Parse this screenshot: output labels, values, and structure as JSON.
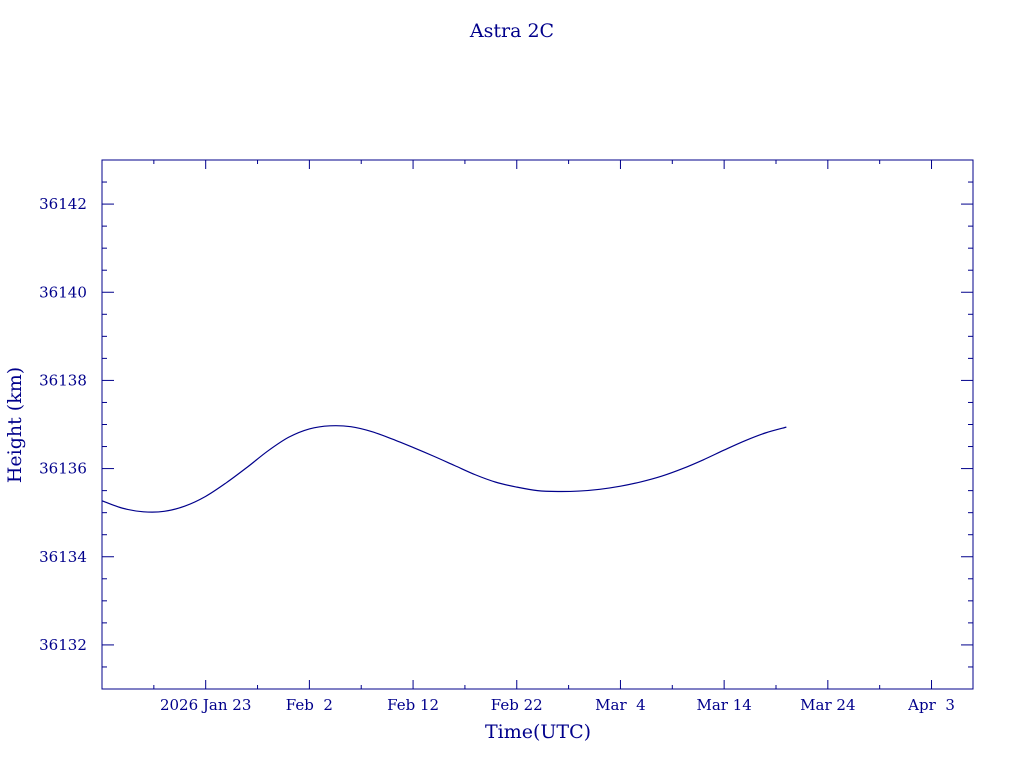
{
  "chart_data": {
    "type": "line",
    "title": "Astra 2C",
    "xlabel": "Time(UTC)",
    "ylabel": "Height (km)",
    "ylim": [
      36131,
      36143
    ],
    "xlim": [
      "2026-01-13",
      "2026-04-07"
    ],
    "grid": false,
    "color": "#00008b",
    "x_tick_labels": [
      "2026 Jan 23",
      "Feb  2",
      "Feb 12",
      "Feb 22",
      "Mar  4",
      "Mar 14",
      "Mar 24",
      "Apr  3"
    ],
    "x_ticks": [
      "2026-01-23",
      "2026-02-02",
      "2026-02-12",
      "2026-02-22",
      "2026-03-04",
      "2026-03-14",
      "2026-03-24",
      "2026-04-03"
    ],
    "y_tick_labels": [
      "36132",
      "36134",
      "36136",
      "36138",
      "36140",
      "36142"
    ],
    "y_ticks": [
      36132,
      36134,
      36136,
      36138,
      36140,
      36142
    ],
    "series": [
      {
        "x": [
          "2026-01-13",
          "2026-01-15",
          "2026-01-17",
          "2026-01-19",
          "2026-01-21",
          "2026-01-23",
          "2026-01-25",
          "2026-01-27",
          "2026-01-29",
          "2026-01-31",
          "2026-02-02",
          "2026-02-04",
          "2026-02-06",
          "2026-02-08",
          "2026-02-10",
          "2026-02-12",
          "2026-02-14",
          "2026-02-16",
          "2026-02-18",
          "2026-02-20",
          "2026-02-22",
          "2026-02-24",
          "2026-02-26",
          "2026-02-28",
          "2026-03-02",
          "2026-03-04",
          "2026-03-06",
          "2026-03-08",
          "2026-03-10",
          "2026-03-12",
          "2026-03-14",
          "2026-03-16",
          "2026-03-18",
          "2026-03-20"
        ],
        "values": [
          36135.27,
          36135.1,
          36135.02,
          36135.03,
          36135.15,
          36135.37,
          36135.68,
          36136.03,
          36136.4,
          36136.71,
          36136.9,
          36136.97,
          36136.95,
          36136.84,
          36136.67,
          36136.48,
          36136.28,
          36136.07,
          36135.86,
          36135.69,
          36135.58,
          36135.5,
          36135.48,
          36135.49,
          36135.53,
          36135.6,
          36135.7,
          36135.83,
          36136.0,
          36136.2,
          36136.42,
          36136.63,
          36136.81,
          36136.94
        ]
      }
    ]
  }
}
